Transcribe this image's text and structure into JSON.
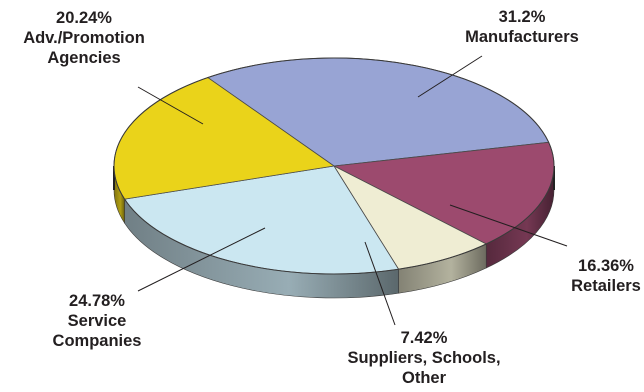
{
  "chart_data": {
    "type": "pie",
    "title": "",
    "slices": [
      {
        "label": "Manufacturers",
        "value": 31.2,
        "value_text": "31.2%",
        "color": "#98a4d4"
      },
      {
        "label": "Retailers",
        "value": 16.36,
        "value_text": "16.36%",
        "color": "#9c4a6e"
      },
      {
        "label": "Suppliers, Schools, Other",
        "value": 7.42,
        "value_text": "7.42%",
        "color": "#efedd3"
      },
      {
        "label": "Service Companies",
        "value": 24.78,
        "value_text": "24.78%",
        "color": "#cbe7f1"
      },
      {
        "label": "Adv./Promotion Agencies",
        "value": 20.24,
        "value_text": "20.24%",
        "color": "#ead31a"
      }
    ],
    "style": "3d-pie",
    "legend": "none"
  }
}
